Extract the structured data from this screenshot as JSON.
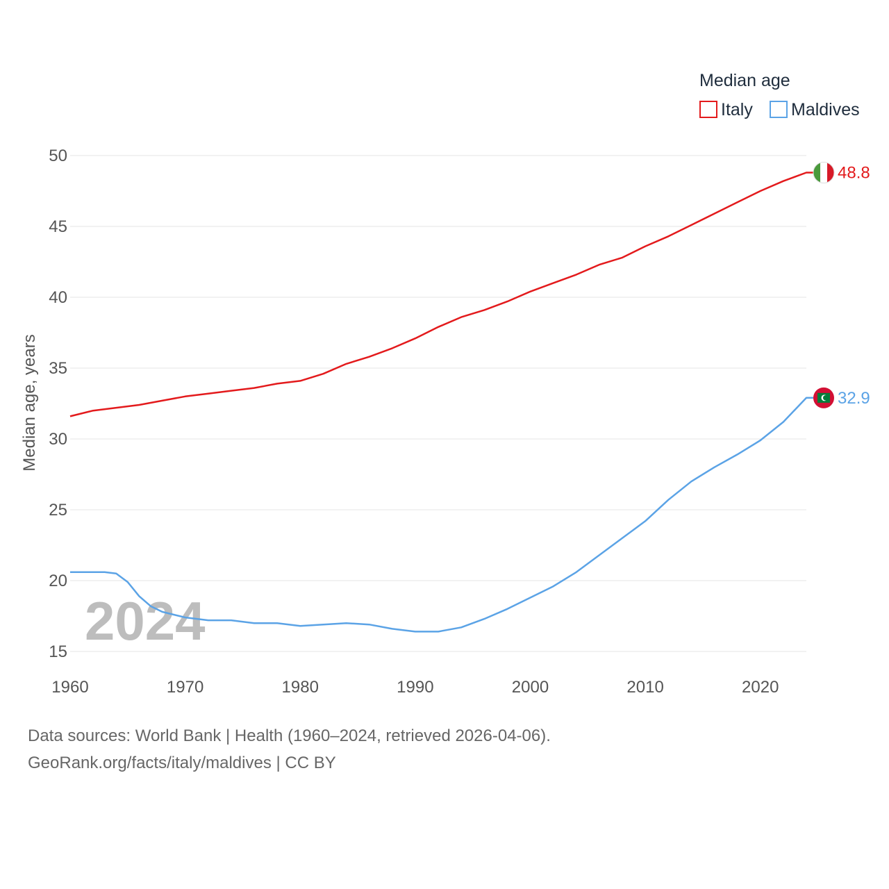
{
  "chart_data": {
    "type": "line",
    "ylabel": "Median age, years",
    "xlim": [
      1960,
      2024
    ],
    "ylim": [
      15,
      50
    ],
    "yticks": [
      15,
      20,
      25,
      30,
      35,
      40,
      45,
      50
    ],
    "xticks": [
      1960,
      1970,
      1980,
      1990,
      2000,
      2010,
      2020
    ],
    "legend_title": "Median age",
    "legend_position": "top-right",
    "current_year": "2024",
    "series": [
      {
        "name": "Italy",
        "color": "#e31a1c",
        "end_label": "48.8",
        "flag": "italy-flag",
        "x": [
          1960,
          1962,
          1964,
          1966,
          1968,
          1970,
          1972,
          1974,
          1976,
          1978,
          1980,
          1982,
          1984,
          1986,
          1988,
          1990,
          1992,
          1994,
          1996,
          1998,
          2000,
          2002,
          2004,
          2006,
          2008,
          2010,
          2012,
          2014,
          2016,
          2018,
          2020,
          2022,
          2024
        ],
        "values": [
          31.6,
          32.0,
          32.2,
          32.4,
          32.7,
          33.0,
          33.2,
          33.4,
          33.6,
          33.9,
          34.1,
          34.6,
          35.3,
          35.8,
          36.4,
          37.1,
          37.9,
          38.6,
          39.1,
          39.7,
          40.4,
          41.0,
          41.6,
          42.3,
          42.8,
          43.6,
          44.3,
          45.1,
          45.9,
          46.7,
          47.5,
          48.2,
          48.8
        ]
      },
      {
        "name": "Maldives",
        "color": "#5ba3e6",
        "end_label": "32.9",
        "flag": "maldives-flag",
        "x": [
          1960,
          1962,
          1963,
          1964,
          1965,
          1966,
          1967,
          1968,
          1970,
          1972,
          1974,
          1976,
          1978,
          1980,
          1982,
          1984,
          1986,
          1988,
          1990,
          1992,
          1994,
          1996,
          1998,
          2000,
          2002,
          2004,
          2006,
          2008,
          2010,
          2012,
          2014,
          2016,
          2018,
          2020,
          2022,
          2024
        ],
        "values": [
          20.6,
          20.6,
          20.6,
          20.5,
          19.9,
          18.9,
          18.2,
          17.8,
          17.4,
          17.2,
          17.2,
          17.0,
          17.0,
          16.8,
          16.9,
          17.0,
          16.9,
          16.6,
          16.4,
          16.4,
          16.7,
          17.3,
          18.0,
          18.8,
          19.6,
          20.6,
          21.8,
          23.0,
          24.2,
          25.7,
          27.0,
          28.0,
          28.9,
          29.9,
          31.2,
          32.9
        ]
      }
    ]
  },
  "footer": {
    "sources": "Data sources: World Bank | Health (1960–2024, retrieved 2026-04-06).",
    "link": "GeoRank.org/facts/italy/maldives | CC BY"
  }
}
